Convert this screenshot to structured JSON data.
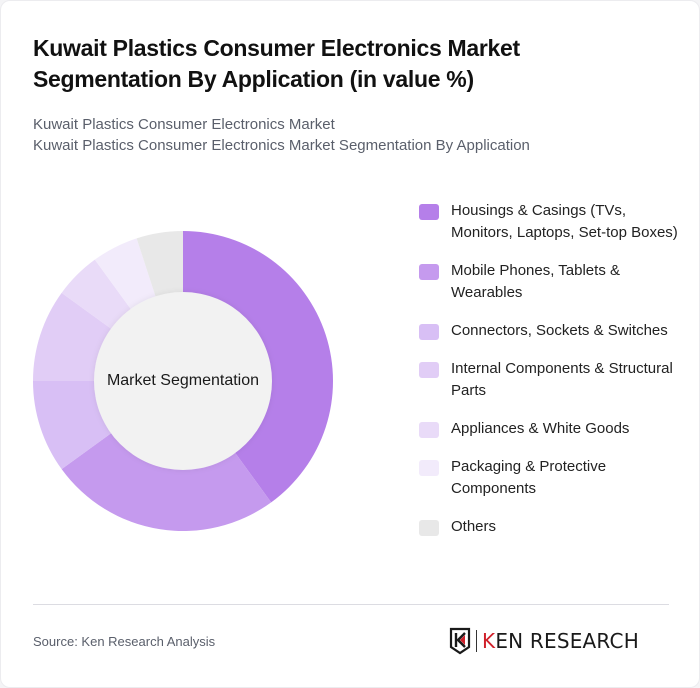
{
  "header": {
    "title": "Kuwait Plastics Consumer Electronics Market Segmentation By Application (in value %)",
    "subtitle_line1": "Kuwait Plastics Consumer Electronics Market",
    "subtitle_line2": "Kuwait Plastics Consumer Electronics Market Segmentation By Application"
  },
  "chart": {
    "center_label": "Market Segmentation"
  },
  "legend": [
    {
      "label": "Housings & Casings (TVs, Monitors, Laptops, Set-top Boxes)",
      "color": "#b57fe9"
    },
    {
      "label": "Mobile Phones, Tablets & Wearables",
      "color": "#c59aee"
    },
    {
      "label": "Connectors, Sockets & Switches",
      "color": "#d8bff5"
    },
    {
      "label": "Internal Components & Structural Parts",
      "color": "#e1cdf6"
    },
    {
      "label": "Appliances & White Goods",
      "color": "#e9dbf8"
    },
    {
      "label": "Packaging & Protective Components",
      "color": "#f2ebfb"
    },
    {
      "label": "Others",
      "color": "#e8e8e8"
    }
  ],
  "footer": {
    "source": "Source: Ken Research Analysis",
    "logo_text_k": "K",
    "logo_text_rest": "EN RESEARCH"
  },
  "chart_data": {
    "type": "pie",
    "subtype": "donut",
    "title": "Kuwait Plastics Consumer Electronics Market Segmentation By Application (in value %)",
    "subtitle": "Kuwait Plastics Consumer Electronics Market Segmentation By Application",
    "center_label": "Market Segmentation",
    "categories": [
      "Housings & Casings (TVs, Monitors, Laptops, Set-top Boxes)",
      "Mobile Phones, Tablets & Wearables",
      "Connectors, Sockets & Switches",
      "Internal Components & Structural Parts",
      "Appliances & White Goods",
      "Packaging & Protective Components",
      "Others"
    ],
    "values": [
      40,
      25,
      10,
      10,
      5,
      5,
      5
    ],
    "unit": "%",
    "colors": [
      "#b57fe9",
      "#c59aee",
      "#d8bff5",
      "#e1cdf6",
      "#e9dbf8",
      "#f2ebfb",
      "#e8e8e8"
    ],
    "legend_position": "right",
    "start_angle": "12 o'clock, clockwise",
    "source": "Source: Ken Research Analysis"
  }
}
